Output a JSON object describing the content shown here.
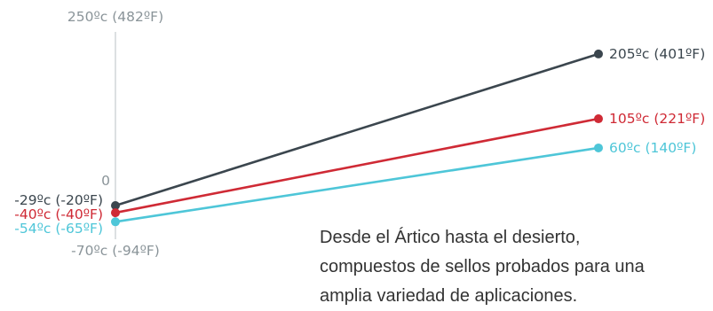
{
  "chart_data": {
    "type": "line",
    "x": [
      "min",
      "max"
    ],
    "ylim": [
      -70,
      250
    ],
    "axis_tick_labels": [
      {
        "value": 250,
        "text": "250ºc (482ºF)"
      },
      {
        "value": 0,
        "text": "0"
      },
      {
        "value": -70,
        "text": "-70ºc (-94ºF)"
      }
    ],
    "series": [
      {
        "color": "#3b464e",
        "values": [
          -29,
          205
        ],
        "labels": [
          "-29ºc (-20ºF)",
          "205ºc (401ºF)"
        ]
      },
      {
        "color": "#cf2a35",
        "values": [
          -40,
          105
        ],
        "labels": [
          "-40ºc (-40ºF)",
          "105ºc (221ºF)"
        ]
      },
      {
        "color": "#4ec6d8",
        "values": [
          -54,
          60
        ],
        "labels": [
          "-54ºc (-65ºF)",
          "60ºc (140ºF)"
        ]
      }
    ],
    "grid": false,
    "legend": "none",
    "axis_color": "#b9c0c4"
  },
  "caption": {
    "lines": [
      "Desde el Ártico hasta el desierto,",
      "compuestos de sellos probados para una",
      "amplia variedad de aplicaciones."
    ]
  }
}
